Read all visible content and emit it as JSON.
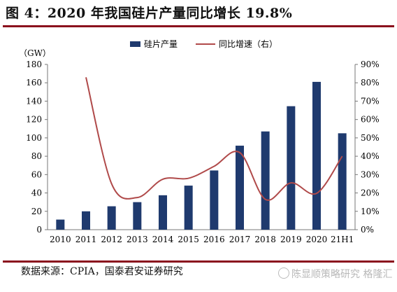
{
  "header": {
    "title": "图 4：2020 年我国硅片产量同比增长 19.8%"
  },
  "footer": {
    "source": "数据来源：CPIA，国泰君安证券研究",
    "watermark": "陈显顺策略研究 格隆汇"
  },
  "colors": {
    "bar": "#1f3a6e",
    "line": "#b04a4a",
    "rule": "#8b0f1d"
  },
  "chart_data": {
    "type": "bar",
    "categories": [
      "2010",
      "2011",
      "2012",
      "2013",
      "2014",
      "2015",
      "2016",
      "2017",
      "2018",
      "2019",
      "2020",
      "21H1"
    ],
    "y_unit_label": "（GW）",
    "ylim": [
      0,
      180
    ],
    "yticks": [
      0,
      20,
      40,
      60,
      80,
      100,
      120,
      140,
      160,
      180
    ],
    "y2lim": [
      0,
      90
    ],
    "y2ticks": [
      "0%",
      "10%",
      "20%",
      "30%",
      "40%",
      "50%",
      "60%",
      "70%",
      "80%",
      "90%"
    ],
    "grid": false,
    "legend_position": "top-right",
    "series": [
      {
        "name": "硅片产量",
        "type": "bar",
        "axis": "left",
        "values": [
          11,
          20,
          25.5,
          30,
          37.5,
          48,
          64.5,
          91.5,
          107,
          134.5,
          161,
          105
        ]
      },
      {
        "name": "同比增速（右）",
        "type": "line",
        "axis": "right",
        "x": [
          "2011",
          "2012",
          "2013",
          "2014",
          "2015",
          "2016",
          "2017",
          "2018",
          "2019",
          "2020",
          "21H1"
        ],
        "values": [
          83,
          25,
          17.5,
          27.5,
          28,
          34.5,
          42,
          16.5,
          25.5,
          19.8,
          40
        ]
      }
    ]
  }
}
